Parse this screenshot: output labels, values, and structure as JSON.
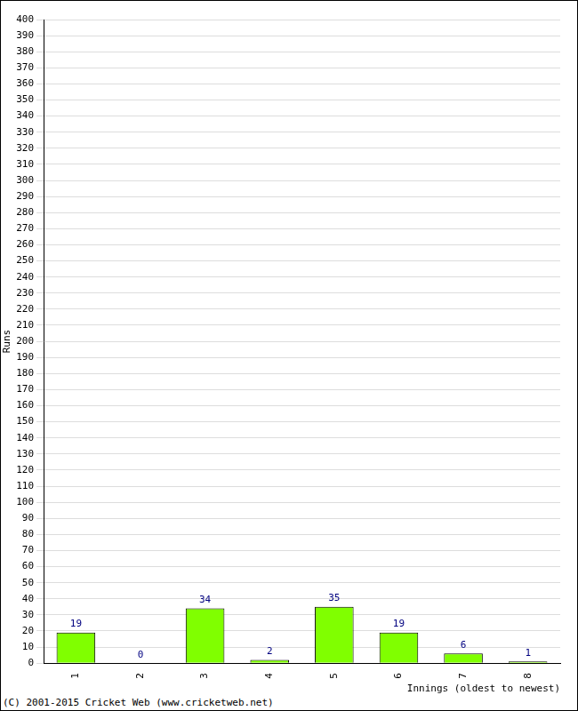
{
  "chart_data": {
    "type": "bar",
    "categories": [
      "1",
      "2",
      "3",
      "4",
      "5",
      "6",
      "7",
      "8"
    ],
    "values": [
      19,
      0,
      34,
      2,
      35,
      19,
      6,
      1
    ],
    "color": "#80ff00",
    "ylim": [
      0,
      400
    ],
    "yticks": [
      0,
      10,
      20,
      30,
      40,
      50,
      60,
      70,
      80,
      90,
      100,
      110,
      120,
      130,
      140,
      150,
      160,
      170,
      180,
      190,
      200,
      210,
      220,
      230,
      240,
      250,
      260,
      270,
      280,
      290,
      300,
      310,
      320,
      330,
      340,
      350,
      360,
      370,
      380,
      390,
      400
    ],
    "grid": true,
    "data_labels": true,
    "y_label": "Runs",
    "x_label": "Innings (oldest to newest)",
    "annotations": [
      "(C) 2001-2015 Cricket Web (www.cricketweb.net)"
    ]
  }
}
